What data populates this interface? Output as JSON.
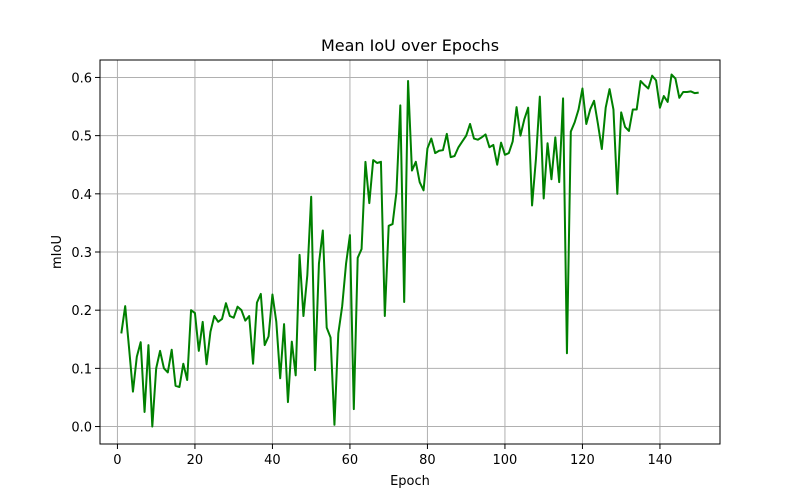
{
  "chart_data": {
    "type": "line",
    "title": "Mean IoU over Epochs",
    "xlabel": "Epoch",
    "ylabel": "mIoU",
    "xlim": [
      -4.5,
      155.5
    ],
    "ylim": [
      -0.03,
      0.63
    ],
    "xticks": [
      0,
      20,
      40,
      60,
      80,
      100,
      120,
      140
    ],
    "yticks": [
      0.0,
      0.1,
      0.2,
      0.3,
      0.4,
      0.5,
      0.6
    ],
    "ytick_labels": [
      "0.0",
      "0.1",
      "0.2",
      "0.3",
      "0.4",
      "0.5",
      "0.6"
    ],
    "grid": true,
    "series": [
      {
        "color": "#008000",
        "x": [
          1,
          2,
          3,
          4,
          5,
          6,
          7,
          8,
          9,
          10,
          11,
          12,
          13,
          14,
          15,
          16,
          17,
          18,
          19,
          20,
          21,
          22,
          23,
          24,
          25,
          26,
          27,
          28,
          29,
          30,
          31,
          32,
          33,
          34,
          35,
          36,
          37,
          38,
          39,
          40,
          41,
          42,
          43,
          44,
          45,
          46,
          47,
          48,
          49,
          50,
          51,
          52,
          53,
          54,
          55,
          56,
          57,
          58,
          59,
          60,
          61,
          62,
          63,
          64,
          65,
          66,
          67,
          68,
          69,
          70,
          71,
          72,
          73,
          74,
          75,
          76,
          77,
          78,
          79,
          80,
          81,
          82,
          83,
          84,
          85,
          86,
          87,
          88,
          89,
          90,
          91,
          92,
          93,
          94,
          95,
          96,
          97,
          98,
          99,
          100,
          101,
          102,
          103,
          104,
          105,
          106,
          107,
          108,
          109,
          110,
          111,
          112,
          113,
          114,
          115,
          116,
          117,
          118,
          119,
          120,
          121,
          122,
          123,
          124,
          125,
          126,
          127,
          128,
          129,
          130,
          131,
          132,
          133,
          134,
          135,
          136,
          137,
          138,
          139,
          140,
          141,
          142,
          143,
          144,
          145,
          146,
          147,
          148,
          149,
          150
        ],
        "values": [
          0.16,
          0.207,
          0.135,
          0.06,
          0.12,
          0.145,
          0.025,
          0.14,
          0.0,
          0.1,
          0.13,
          0.1,
          0.093,
          0.132,
          0.07,
          0.068,
          0.108,
          0.08,
          0.2,
          0.195,
          0.13,
          0.18,
          0.107,
          0.163,
          0.19,
          0.18,
          0.185,
          0.212,
          0.19,
          0.187,
          0.206,
          0.2,
          0.182,
          0.19,
          0.108,
          0.213,
          0.228,
          0.14,
          0.155,
          0.227,
          0.18,
          0.083,
          0.176,
          0.042,
          0.146,
          0.088,
          0.295,
          0.19,
          0.26,
          0.395,
          0.097,
          0.28,
          0.337,
          0.17,
          0.153,
          0.003,
          0.16,
          0.207,
          0.28,
          0.329,
          0.03,
          0.29,
          0.305,
          0.455,
          0.384,
          0.458,
          0.453,
          0.455,
          0.19,
          0.345,
          0.348,
          0.403,
          0.552,
          0.214,
          0.594,
          0.44,
          0.455,
          0.42,
          0.406,
          0.478,
          0.495,
          0.47,
          0.474,
          0.475,
          0.503,
          0.463,
          0.465,
          0.48,
          0.49,
          0.5,
          0.52,
          0.495,
          0.493,
          0.497,
          0.502,
          0.48,
          0.484,
          0.45,
          0.488,
          0.467,
          0.47,
          0.49,
          0.549,
          0.5,
          0.528,
          0.548,
          0.38,
          0.46,
          0.567,
          0.392,
          0.487,
          0.425,
          0.497,
          0.42,
          0.564,
          0.126,
          0.507,
          0.523,
          0.545,
          0.581,
          0.52,
          0.545,
          0.56,
          0.52,
          0.477,
          0.548,
          0.58,
          0.545,
          0.4,
          0.54,
          0.515,
          0.508,
          0.545,
          0.545,
          0.594,
          0.587,
          0.581,
          0.603,
          0.595,
          0.548,
          0.568,
          0.558,
          0.605,
          0.598,
          0.565,
          0.575,
          0.575,
          0.576,
          0.573,
          0.574
        ]
      }
    ]
  }
}
